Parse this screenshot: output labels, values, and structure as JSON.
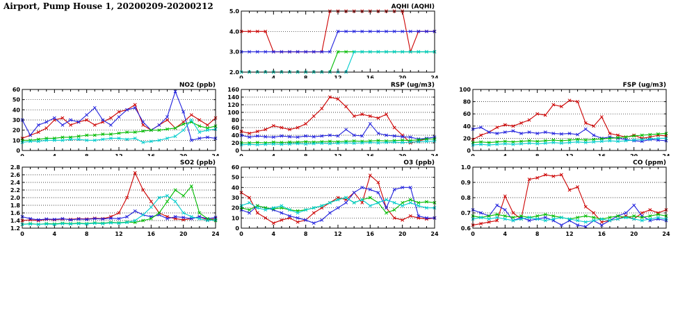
{
  "title": "Airport, Pump House 1, 20200209-20200212",
  "chart_data": [
    {
      "id": "aqhi",
      "type": "line",
      "title": "AQHI (AQHI)",
      "xlim": [
        0,
        24
      ],
      "xticks": [
        0,
        4,
        8,
        12,
        16,
        20,
        24
      ],
      "x_minor_step": 1,
      "ylim": [
        2.0,
        5.0
      ],
      "yticks": [
        2.0,
        3.0,
        4.0,
        5.0
      ],
      "ydecimals": 1,
      "grid": "horizontal-dotted",
      "legend": "none",
      "series": [
        {
          "name": "red",
          "color": "#cc0000",
          "values": [
            4,
            4,
            4,
            4,
            3,
            3,
            3,
            3,
            3,
            3,
            3,
            5,
            5,
            5,
            5,
            5,
            5,
            5,
            5,
            5,
            5,
            3,
            4,
            4,
            4
          ]
        },
        {
          "name": "blue",
          "color": "#2020dd",
          "values": [
            3,
            3,
            3,
            3,
            3,
            3,
            3,
            3,
            3,
            3,
            3,
            3,
            4,
            4,
            4,
            4,
            4,
            4,
            4,
            4,
            4,
            4,
            4,
            4,
            4
          ]
        },
        {
          "name": "green",
          "color": "#00bb00",
          "values": [
            2,
            2,
            2,
            2,
            2,
            2,
            2,
            2,
            2,
            2,
            2,
            2,
            3,
            3,
            3,
            3,
            3,
            3,
            3,
            3,
            3,
            3,
            3,
            3,
            3
          ]
        },
        {
          "name": "cyan",
          "color": "#00cccc",
          "values": [
            2,
            2,
            2,
            2,
            2,
            2,
            2,
            2,
            2,
            2,
            2,
            2,
            2,
            2,
            3,
            3,
            3,
            3,
            3,
            3,
            3,
            3,
            3,
            3,
            3
          ]
        }
      ]
    },
    {
      "id": "no2",
      "type": "line",
      "title": "NO2 (ppb)",
      "xlim": [
        0,
        24
      ],
      "xticks": [
        0,
        4,
        8,
        12,
        16,
        20,
        24
      ],
      "x_minor_step": 1,
      "ylim": [
        0,
        60
      ],
      "yticks": [
        0,
        10,
        20,
        30,
        40,
        50,
        60
      ],
      "ydecimals": 0,
      "grid": "horizontal-dotted",
      "legend": "none",
      "series": [
        {
          "name": "red",
          "color": "#cc0000",
          "values": [
            12,
            15,
            18,
            22,
            30,
            32,
            25,
            28,
            30,
            25,
            28,
            32,
            38,
            40,
            45,
            25,
            20,
            25,
            30,
            22,
            28,
            35,
            30,
            25,
            32
          ]
        },
        {
          "name": "blue",
          "color": "#2020dd",
          "values": [
            30,
            15,
            25,
            28,
            32,
            25,
            30,
            28,
            35,
            42,
            30,
            25,
            33,
            40,
            42,
            28,
            20,
            25,
            33,
            58,
            38,
            10,
            12,
            13,
            12
          ]
        },
        {
          "name": "green",
          "color": "#00bb00",
          "values": [
            10,
            10,
            11,
            12,
            12,
            13,
            13,
            14,
            15,
            15,
            16,
            16,
            17,
            18,
            18,
            19,
            20,
            20,
            21,
            22,
            26,
            28,
            24,
            22,
            24
          ]
        },
        {
          "name": "cyan",
          "color": "#00cccc",
          "values": [
            8,
            9,
            9,
            10,
            10,
            10,
            11,
            11,
            10,
            10,
            11,
            12,
            12,
            11,
            12,
            8,
            9,
            10,
            12,
            14,
            20,
            30,
            18,
            20,
            21
          ]
        }
      ]
    },
    {
      "id": "rsp",
      "type": "line",
      "title": "RSP (ug/m3)",
      "xlim": [
        0,
        24
      ],
      "xticks": [
        0,
        4,
        8,
        12,
        16,
        20,
        24
      ],
      "x_minor_step": 1,
      "ylim": [
        0,
        160
      ],
      "yticks": [
        0,
        20,
        40,
        60,
        80,
        100,
        120,
        140,
        160
      ],
      "ydecimals": 0,
      "grid": "horizontal-dotted",
      "legend": "none",
      "series": [
        {
          "name": "red",
          "color": "#cc0000",
          "values": [
            50,
            45,
            50,
            55,
            65,
            60,
            55,
            60,
            70,
            90,
            110,
            140,
            135,
            115,
            90,
            95,
            90,
            85,
            95,
            60,
            40,
            20,
            25,
            30,
            30
          ]
        },
        {
          "name": "blue",
          "color": "#2020dd",
          "values": [
            40,
            35,
            38,
            36,
            35,
            38,
            36,
            35,
            38,
            36,
            38,
            40,
            38,
            55,
            40,
            38,
            70,
            45,
            40,
            38,
            36,
            35,
            30,
            32,
            35
          ]
        },
        {
          "name": "green",
          "color": "#00bb00",
          "values": [
            20,
            20,
            21,
            20,
            22,
            21,
            22,
            22,
            23,
            22,
            23,
            24,
            23,
            24,
            25,
            24,
            25,
            26,
            25,
            26,
            27,
            26,
            28,
            30,
            30
          ]
        },
        {
          "name": "cyan",
          "color": "#00cccc",
          "values": [
            15,
            16,
            15,
            16,
            17,
            16,
            17,
            18,
            17,
            18,
            19,
            18,
            19,
            20,
            19,
            20,
            21,
            20,
            21,
            22,
            21,
            22,
            23,
            24,
            25
          ]
        }
      ]
    },
    {
      "id": "fsp",
      "type": "line",
      "title": "FSP (ug/m3)",
      "xlim": [
        0,
        24
      ],
      "xticks": [
        0,
        4,
        8,
        12,
        16,
        20,
        24
      ],
      "x_minor_step": 1,
      "ylim": [
        0,
        100
      ],
      "yticks": [
        0,
        20,
        40,
        60,
        80,
        100
      ],
      "ydecimals": 0,
      "grid": "horizontal-dotted",
      "legend": "none",
      "series": [
        {
          "name": "red",
          "color": "#cc0000",
          "values": [
            18,
            25,
            30,
            38,
            42,
            40,
            45,
            50,
            60,
            58,
            75,
            72,
            82,
            80,
            45,
            40,
            55,
            28,
            25,
            22,
            25,
            20,
            22,
            25,
            24
          ]
        },
        {
          "name": "blue",
          "color": "#2020dd",
          "values": [
            35,
            38,
            30,
            28,
            30,
            32,
            28,
            30,
            28,
            30,
            28,
            27,
            28,
            26,
            35,
            25,
            20,
            22,
            20,
            18,
            16,
            15,
            18,
            17,
            16
          ]
        },
        {
          "name": "green",
          "color": "#00bb00",
          "values": [
            13,
            14,
            13,
            14,
            15,
            14,
            15,
            16,
            15,
            16,
            17,
            16,
            17,
            18,
            17,
            18,
            19,
            20,
            21,
            22,
            24,
            25,
            26,
            27,
            28
          ]
        },
        {
          "name": "cyan",
          "color": "#00cccc",
          "values": [
            9,
            10,
            9,
            10,
            11,
            10,
            11,
            12,
            11,
            12,
            13,
            12,
            13,
            14,
            13,
            14,
            15,
            16,
            15,
            16,
            17,
            18,
            19,
            20,
            20
          ]
        }
      ]
    },
    {
      "id": "so2",
      "type": "line",
      "title": "SO2 (ppb)",
      "xlim": [
        0,
        24
      ],
      "xticks": [
        0,
        4,
        8,
        12,
        16,
        20,
        24
      ],
      "x_minor_step": 1,
      "ylim": [
        1.2,
        2.8
      ],
      "yticks": [
        1.2,
        1.4,
        1.6,
        1.8,
        2.0,
        2.2,
        2.4,
        2.6,
        2.8
      ],
      "ydecimals": 1,
      "grid": "horizontal-dotted",
      "legend": "none",
      "series": [
        {
          "name": "red",
          "color": "#cc0000",
          "values": [
            1.4,
            1.42,
            1.4,
            1.43,
            1.42,
            1.44,
            1.43,
            1.45,
            1.44,
            1.46,
            1.45,
            1.5,
            1.6,
            2.0,
            2.65,
            2.2,
            1.9,
            1.6,
            1.5,
            1.45,
            1.42,
            1.45,
            1.5,
            1.42,
            1.45
          ]
        },
        {
          "name": "blue",
          "color": "#2020dd",
          "values": [
            1.5,
            1.45,
            1.42,
            1.44,
            1.43,
            1.45,
            1.42,
            1.44,
            1.43,
            1.45,
            1.44,
            1.46,
            1.45,
            1.5,
            1.65,
            1.55,
            1.5,
            1.55,
            1.45,
            1.5,
            1.48,
            1.45,
            1.5,
            1.45,
            1.48
          ]
        },
        {
          "name": "green",
          "color": "#00bb00",
          "values": [
            1.3,
            1.32,
            1.3,
            1.32,
            1.31,
            1.33,
            1.32,
            1.33,
            1.32,
            1.34,
            1.33,
            1.35,
            1.34,
            1.36,
            1.35,
            1.4,
            1.45,
            1.6,
            1.9,
            2.2,
            2.05,
            2.3,
            1.6,
            1.45,
            1.4
          ]
        },
        {
          "name": "cyan",
          "color": "#00cccc",
          "values": [
            1.3,
            1.31,
            1.3,
            1.31,
            1.3,
            1.32,
            1.31,
            1.32,
            1.31,
            1.33,
            1.32,
            1.34,
            1.33,
            1.35,
            1.4,
            1.55,
            1.75,
            2.0,
            2.05,
            1.9,
            1.6,
            1.5,
            1.45,
            1.4,
            1.42
          ]
        }
      ]
    },
    {
      "id": "o3",
      "type": "line",
      "title": "O3 (ppb)",
      "xlim": [
        0,
        24
      ],
      "xticks": [
        0,
        4,
        8,
        12,
        16,
        20,
        24
      ],
      "x_minor_step": 1,
      "ylim": [
        0,
        60
      ],
      "yticks": [
        0,
        10,
        20,
        30,
        40,
        50,
        60
      ],
      "ydecimals": 0,
      "grid": "horizontal-dotted",
      "legend": "none",
      "series": [
        {
          "name": "red",
          "color": "#cc0000",
          "values": [
            35,
            30,
            15,
            10,
            5,
            8,
            10,
            6,
            8,
            15,
            20,
            25,
            30,
            28,
            35,
            25,
            52,
            45,
            20,
            10,
            8,
            12,
            10,
            9,
            10
          ]
        },
        {
          "name": "blue",
          "color": "#2020dd",
          "values": [
            18,
            15,
            22,
            20,
            18,
            15,
            12,
            10,
            8,
            5,
            8,
            15,
            20,
            25,
            35,
            40,
            38,
            35,
            20,
            38,
            40,
            40,
            12,
            10,
            10
          ]
        },
        {
          "name": "green",
          "color": "#00bb00",
          "values": [
            20,
            18,
            22,
            20,
            19,
            20,
            18,
            17,
            18,
            20,
            22,
            25,
            28,
            30,
            25,
            28,
            30,
            25,
            15,
            18,
            25,
            28,
            25,
            26,
            25
          ]
        },
        {
          "name": "cyan",
          "color": "#00cccc",
          "values": [
            22,
            25,
            20,
            18,
            20,
            22,
            18,
            15,
            18,
            20,
            22,
            25,
            28,
            30,
            25,
            28,
            22,
            25,
            28,
            25,
            22,
            25,
            22,
            20,
            20
          ]
        }
      ]
    },
    {
      "id": "co",
      "type": "line",
      "title": "CO (ppm)",
      "xlim": [
        0,
        24
      ],
      "xticks": [
        0,
        4,
        8,
        12,
        16,
        20,
        24
      ],
      "x_minor_step": 1,
      "ylim": [
        0.6,
        1.0
      ],
      "yticks": [
        0.6,
        0.7,
        0.8,
        0.9,
        1.0
      ],
      "ydecimals": 1,
      "grid": "horizontal-dotted",
      "legend": "none",
      "series": [
        {
          "name": "red",
          "color": "#cc0000",
          "values": [
            0.62,
            0.63,
            0.64,
            0.65,
            0.81,
            0.7,
            0.66,
            0.92,
            0.93,
            0.95,
            0.94,
            0.95,
            0.85,
            0.87,
            0.74,
            0.7,
            0.64,
            0.65,
            0.66,
            0.68,
            0.66,
            0.7,
            0.72,
            0.7,
            0.72
          ]
        },
        {
          "name": "blue",
          "color": "#2020dd",
          "values": [
            0.72,
            0.7,
            0.68,
            0.75,
            0.72,
            0.65,
            0.67,
            0.65,
            0.66,
            0.67,
            0.65,
            0.62,
            0.65,
            0.62,
            0.61,
            0.65,
            0.62,
            0.65,
            0.68,
            0.7,
            0.75,
            0.68,
            0.65,
            0.66,
            0.65
          ]
        },
        {
          "name": "green",
          "color": "#00bb00",
          "values": [
            0.68,
            0.67,
            0.68,
            0.69,
            0.68,
            0.67,
            0.68,
            0.67,
            0.68,
            0.69,
            0.68,
            0.67,
            0.66,
            0.67,
            0.68,
            0.67,
            0.66,
            0.67,
            0.68,
            0.67,
            0.68,
            0.67,
            0.68,
            0.69,
            0.68
          ]
        },
        {
          "name": "cyan",
          "color": "#00cccc",
          "values": [
            0.66,
            0.67,
            0.66,
            0.67,
            0.66,
            0.65,
            0.66,
            0.67,
            0.66,
            0.65,
            0.66,
            0.67,
            0.66,
            0.65,
            0.64,
            0.65,
            0.66,
            0.65,
            0.66,
            0.67,
            0.66,
            0.65,
            0.66,
            0.67,
            0.66
          ]
        }
      ]
    }
  ]
}
